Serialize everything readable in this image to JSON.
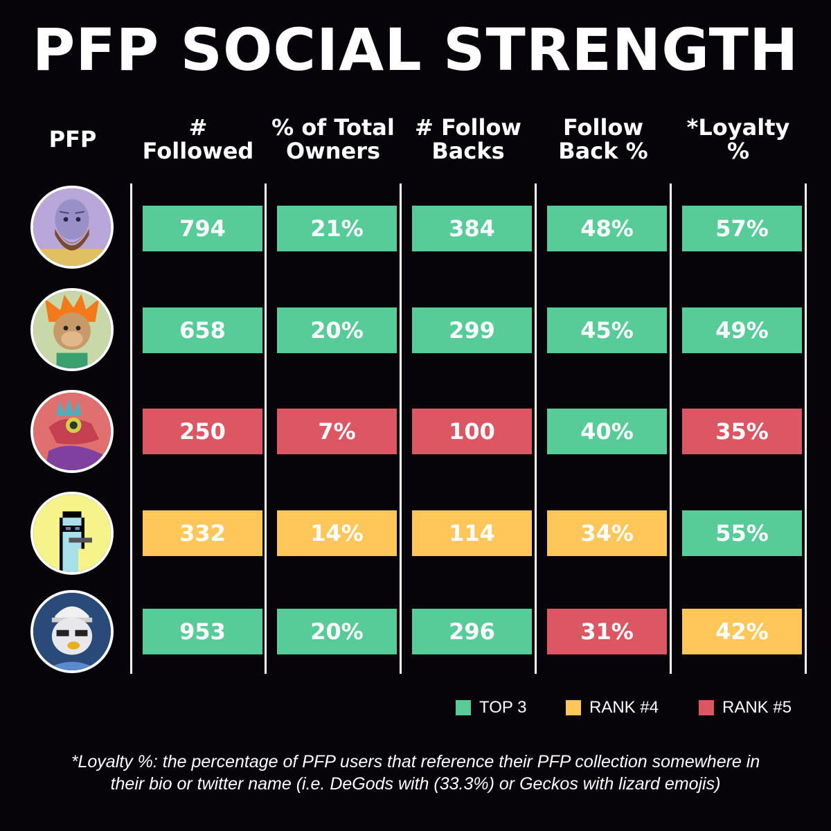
{
  "title": "PFP SOCIAL STRENGTH",
  "headers": [
    {
      "line1": "PFP",
      "line2": ""
    },
    {
      "line1": "#",
      "line2": "Followed"
    },
    {
      "line1": "% of Total",
      "line2": "Owners"
    },
    {
      "line1": "# Follow",
      "line2": "Backs"
    },
    {
      "line1": "Follow",
      "line2": "Back %"
    },
    {
      "line1": "*Loyalty",
      "line2": "%"
    }
  ],
  "colors": {
    "top3": "#57cc99",
    "rank4": "#ffc75a",
    "rank5": "#dc5664"
  },
  "rows": [
    {
      "avatar": "bald-bearded-man-avatar-icon",
      "cells": [
        {
          "value": "794",
          "rank": "top3"
        },
        {
          "value": "21%",
          "rank": "top3"
        },
        {
          "value": "384",
          "rank": "top3"
        },
        {
          "value": "48%",
          "rank": "top3"
        },
        {
          "value": "57%",
          "rank": "top3"
        }
      ]
    },
    {
      "avatar": "orange-haired-ape-avatar-icon",
      "cells": [
        {
          "value": "658",
          "rank": "top3"
        },
        {
          "value": "20%",
          "rank": "top3"
        },
        {
          "value": "299",
          "rank": "top3"
        },
        {
          "value": "45%",
          "rank": "top3"
        },
        {
          "value": "49%",
          "rank": "top3"
        }
      ]
    },
    {
      "avatar": "red-lizard-gecko-avatar-icon",
      "cells": [
        {
          "value": "250",
          "rank": "rank5"
        },
        {
          "value": "7%",
          "rank": "rank5"
        },
        {
          "value": "100",
          "rank": "rank5"
        },
        {
          "value": "40%",
          "rank": "top3"
        },
        {
          "value": "35%",
          "rank": "rank5"
        }
      ]
    },
    {
      "avatar": "pixel-punk-avatar-icon",
      "cells": [
        {
          "value": "332",
          "rank": "rank4"
        },
        {
          "value": "14%",
          "rank": "rank4"
        },
        {
          "value": "114",
          "rank": "rank4"
        },
        {
          "value": "34%",
          "rank": "rank4"
        },
        {
          "value": "55%",
          "rank": "top3"
        }
      ]
    },
    {
      "avatar": "white-gorilla-avatar-icon",
      "cells": [
        {
          "value": "953",
          "rank": "top3"
        },
        {
          "value": "20%",
          "rank": "top3"
        },
        {
          "value": "296",
          "rank": "top3"
        },
        {
          "value": "31%",
          "rank": "rank5"
        },
        {
          "value": "42%",
          "rank": "rank4"
        }
      ]
    }
  ],
  "legend": [
    {
      "label": "TOP 3",
      "rank": "top3"
    },
    {
      "label": "RANK #4",
      "rank": "rank4"
    },
    {
      "label": "RANK #5",
      "rank": "rank5"
    }
  ],
  "footnote": {
    "line1": "*Loyalty %: the percentage of PFP users that reference their PFP collection somewhere in",
    "line2": "their bio or twitter name (i.e. DeGods with (33.3%) or Geckos with lizard emojis)"
  }
}
